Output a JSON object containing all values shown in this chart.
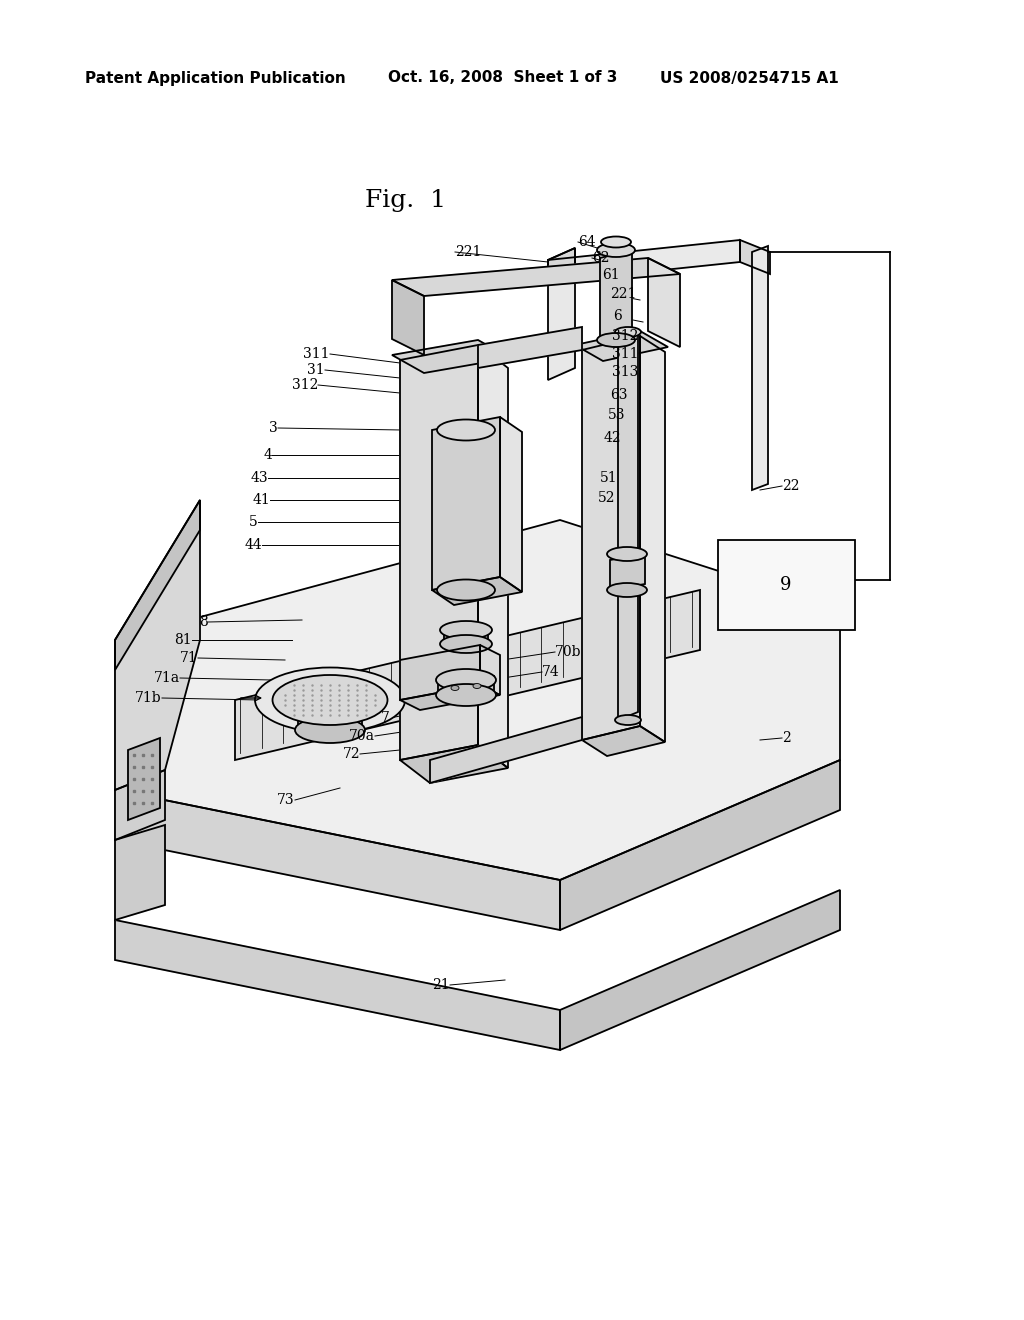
{
  "bg_color": "#ffffff",
  "line_color": "#000000",
  "header_left": "Patent Application Publication",
  "header_mid": "Oct. 16, 2008  Sheet 1 of 3",
  "header_right": "US 2008/0254715 A1",
  "fig_title": "Fig.  1",
  "header_fontsize": 11,
  "title_fontsize": 18,
  "label_fontsize": 10,
  "lw_main": 1.3,
  "lw_thin": 0.7,
  "fill_light": "#f0f0f0",
  "fill_mid": "#d8d8d8",
  "fill_dark": "#c0c0c0",
  "fill_white": "#f8f8f8"
}
